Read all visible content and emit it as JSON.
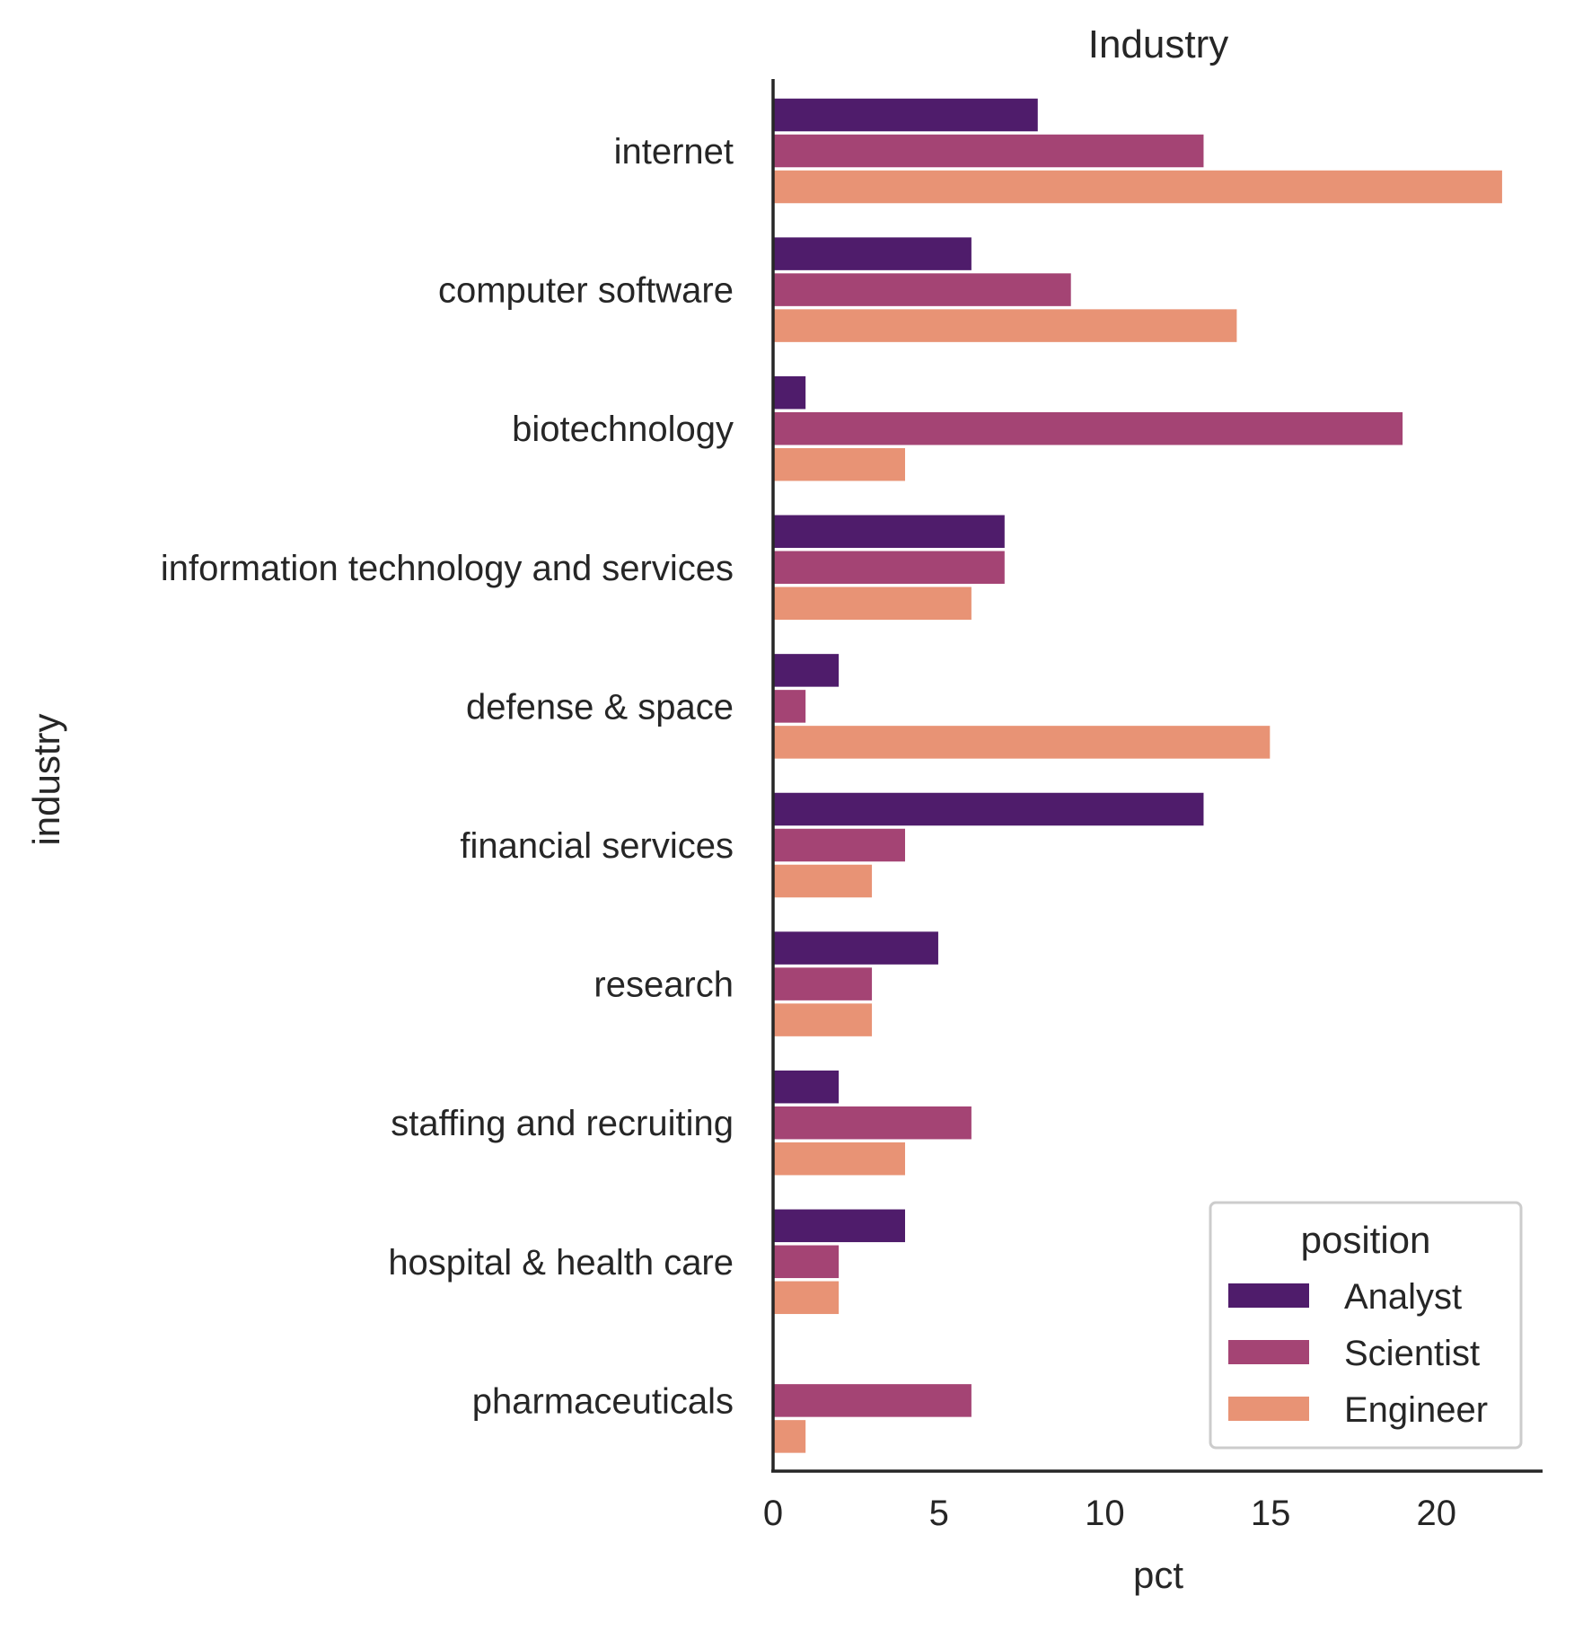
{
  "chart_data": {
    "type": "bar",
    "orientation": "horizontal",
    "title": "Industry",
    "xlabel": "pct",
    "ylabel": "industry",
    "xlim": [
      0,
      23.2
    ],
    "xticks": [
      0,
      5,
      10,
      15,
      20
    ],
    "grid": false,
    "legend": {
      "title": "position",
      "placement": "bottom-right"
    },
    "categories": [
      "internet",
      "computer software",
      "biotechnology",
      "information technology and services",
      "defense & space",
      "financial services",
      "research",
      "staffing and recruiting",
      "hospital & health care",
      "pharmaceuticals"
    ],
    "series": [
      {
        "name": "Analyst",
        "color": "#4f1c6b",
        "values": [
          8,
          6,
          1,
          7,
          2,
          13,
          5,
          2,
          4,
          0
        ]
      },
      {
        "name": "Scientist",
        "color": "#a44474",
        "values": [
          13,
          9,
          19,
          7,
          1,
          4,
          3,
          6,
          2,
          6
        ]
      },
      {
        "name": "Engineer",
        "color": "#e89375",
        "values": [
          22,
          14,
          4,
          6,
          15,
          3,
          3,
          4,
          2,
          1
        ]
      }
    ]
  }
}
